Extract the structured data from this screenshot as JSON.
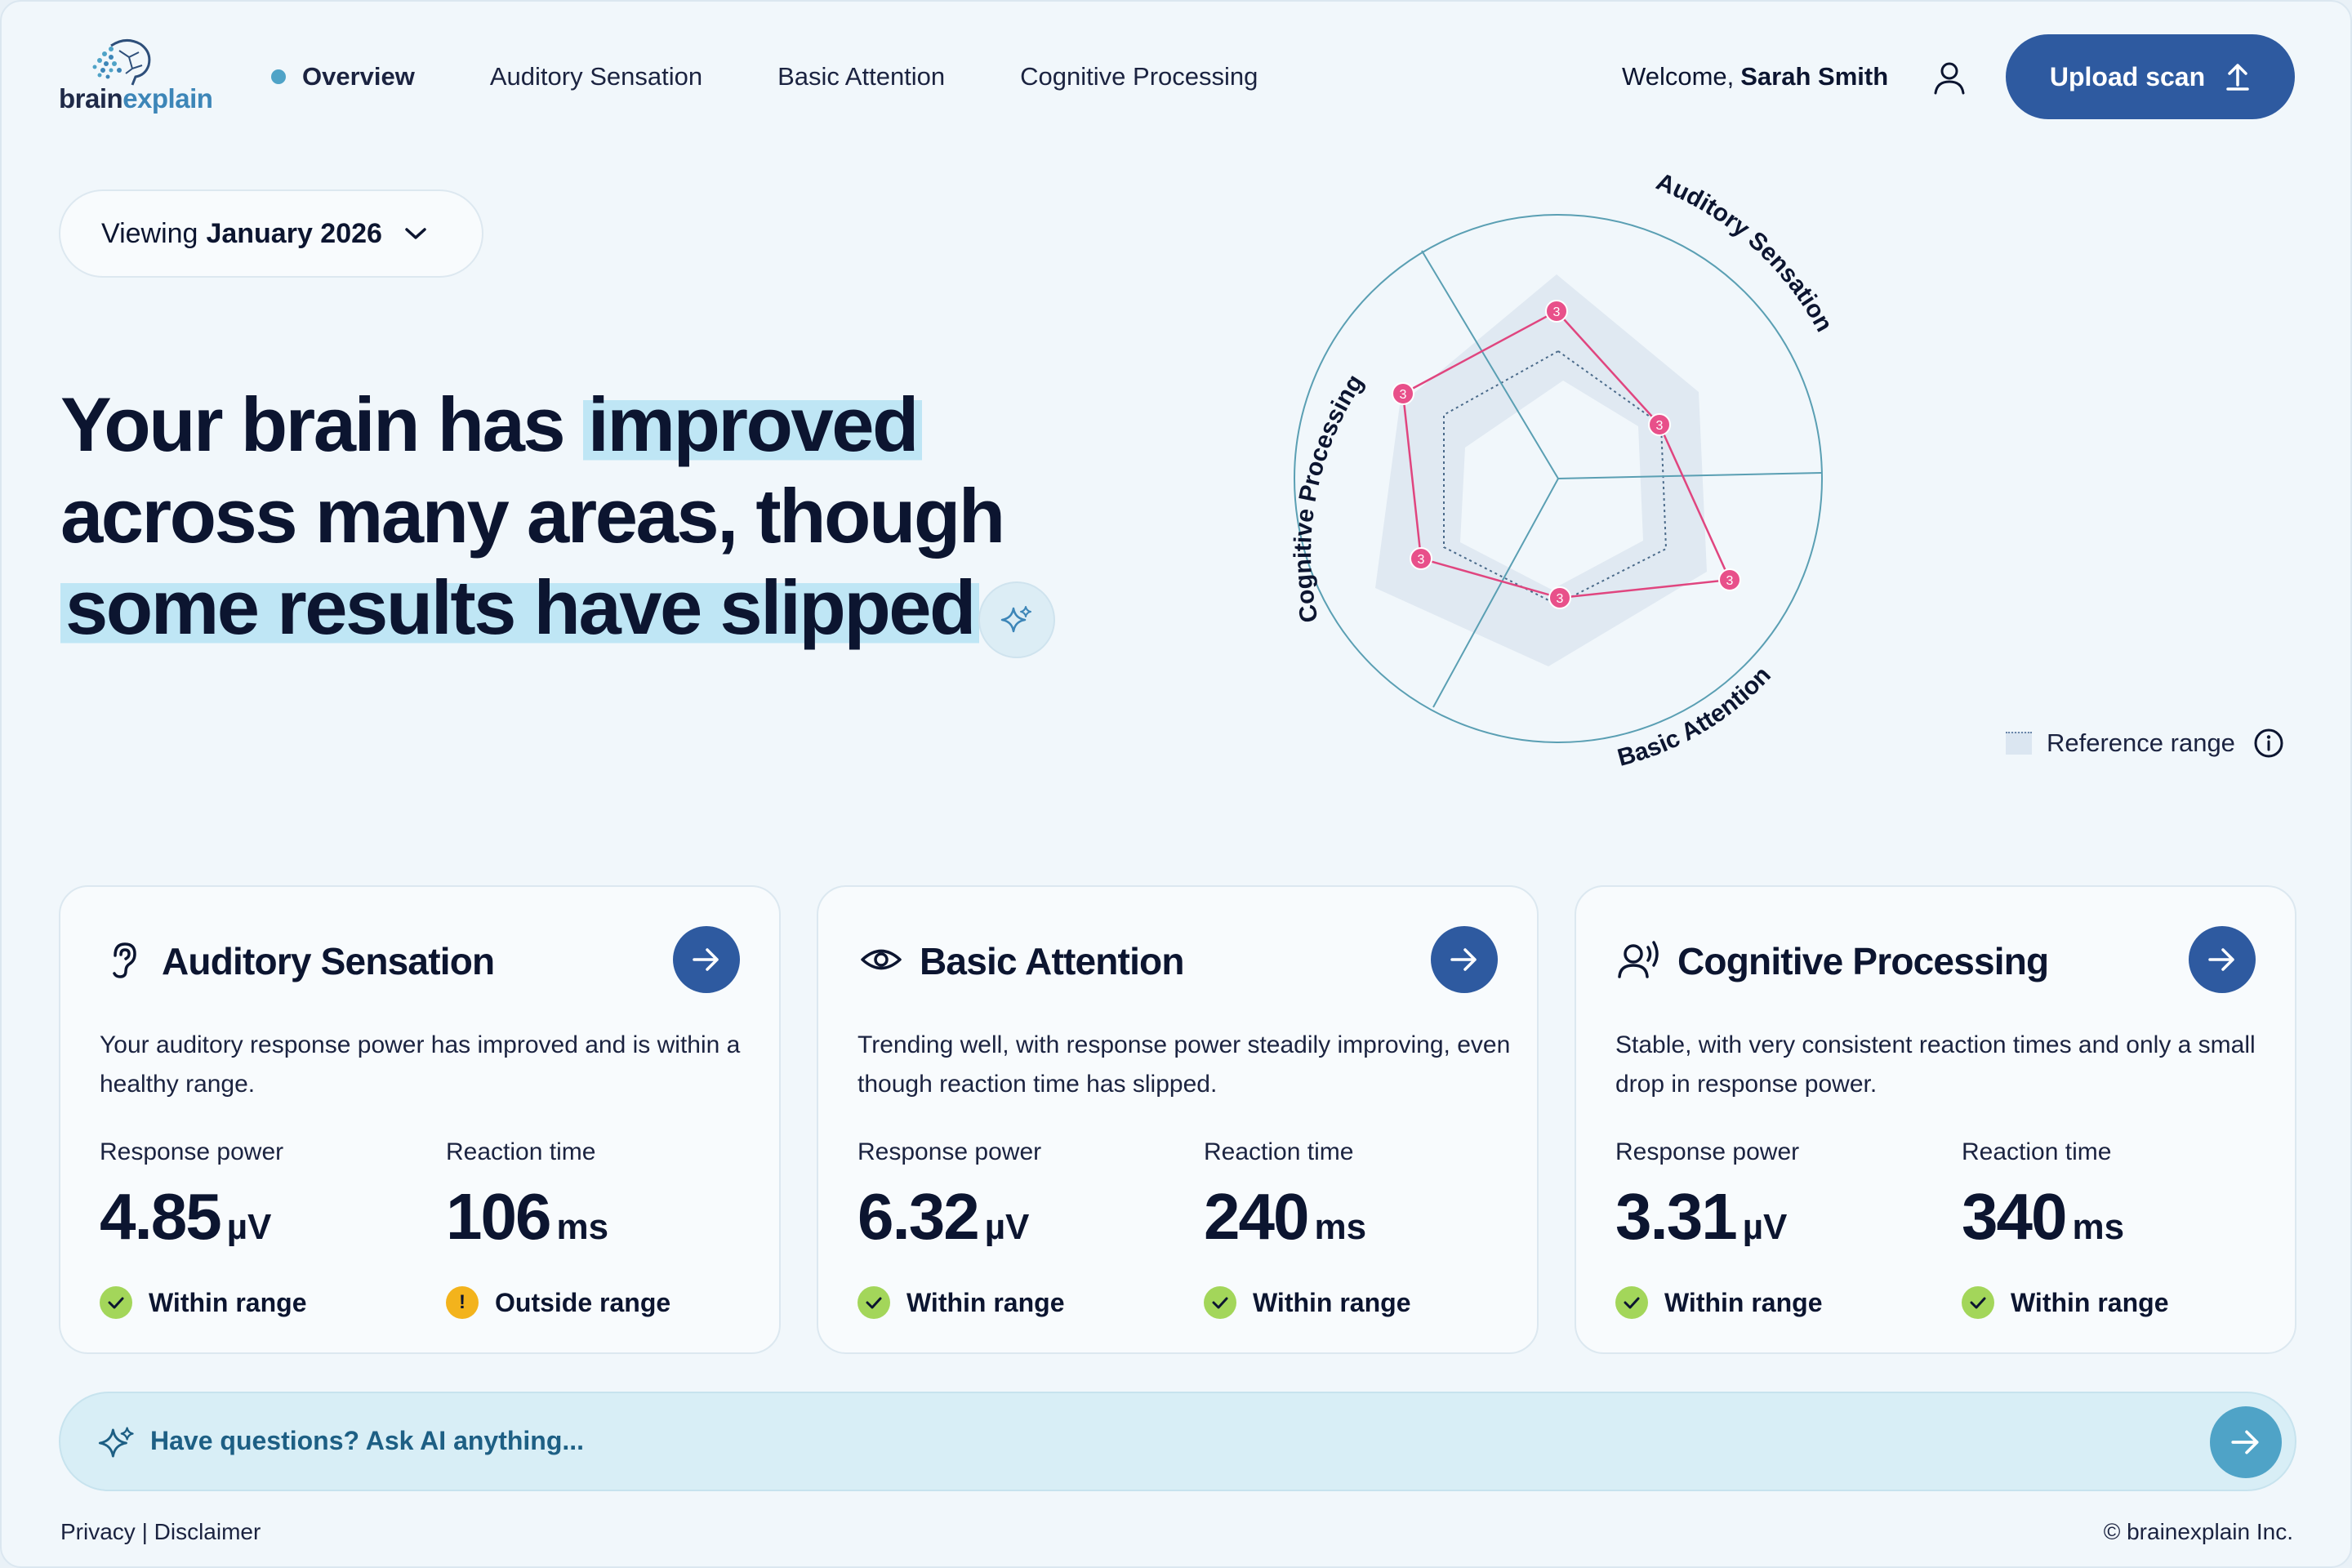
{
  "brand": {
    "name_part1": "brain",
    "name_part2": "explain"
  },
  "nav": {
    "items": [
      {
        "label": "Overview",
        "active": true
      },
      {
        "label": "Auditory Sensation",
        "active": false
      },
      {
        "label": "Basic Attention",
        "active": false
      },
      {
        "label": "Cognitive Processing",
        "active": false
      }
    ]
  },
  "user": {
    "welcome_prefix": "Welcome,",
    "name": "Sarah Smith"
  },
  "upload": {
    "label": "Upload scan"
  },
  "period": {
    "prefix": "Viewing",
    "value": "January 2026"
  },
  "headline": {
    "line1_plain": "Your brain has",
    "line1_highlight": "improved",
    "line2": "across many areas, though",
    "line3_highlight": "some results have slipped"
  },
  "radar": {
    "axis_labels": [
      "Auditory Sensation",
      "Basic Attention",
      "Cognitive Processing"
    ],
    "point_labels": [
      "3",
      "3",
      "3",
      "3",
      "3",
      "3"
    ],
    "legend_label": "Reference range"
  },
  "cards": [
    {
      "title": "Auditory Sensation",
      "icon": "ear-icon",
      "description": "Your auditory response power has improved and is within a healthy range.",
      "metrics": [
        {
          "label": "Response power",
          "value": "4.85",
          "unit": "µV",
          "status": "Within range",
          "ok": true
        },
        {
          "label": "Reaction time",
          "value": "106",
          "unit": "ms",
          "status": "Outside range",
          "ok": false
        }
      ]
    },
    {
      "title": "Basic Attention",
      "icon": "eye-icon",
      "description": "Trending well, with response power steadily improving, even though reaction time has slipped.",
      "metrics": [
        {
          "label": "Response power",
          "value": "6.32",
          "unit": "µV",
          "status": "Within range",
          "ok": true
        },
        {
          "label": "Reaction time",
          "value": "240",
          "unit": "ms",
          "status": "Within range",
          "ok": true
        }
      ]
    },
    {
      "title": "Cognitive Processing",
      "icon": "speaking-head-icon",
      "description": "Stable, with very consistent reaction times and only a small drop in response power.",
      "metrics": [
        {
          "label": "Response power",
          "value": "3.31",
          "unit": "µV",
          "status": "Within range",
          "ok": true
        },
        {
          "label": "Reaction time",
          "value": "340",
          "unit": "ms",
          "status": "Within range",
          "ok": true
        }
      ]
    }
  ],
  "ask": {
    "placeholder": "Have questions? Ask AI anything..."
  },
  "footer": {
    "privacy": "Privacy",
    "separator": "|",
    "disclaimer": "Disclaimer",
    "copyright": "© brainexplain Inc."
  },
  "colors": {
    "primary": "#2e5aa0",
    "accent": "#4fa3c7",
    "highlight": "#bfe6f5",
    "radar_line": "#e0457f",
    "ok": "#a3d65a",
    "warn": "#f3b31c"
  }
}
